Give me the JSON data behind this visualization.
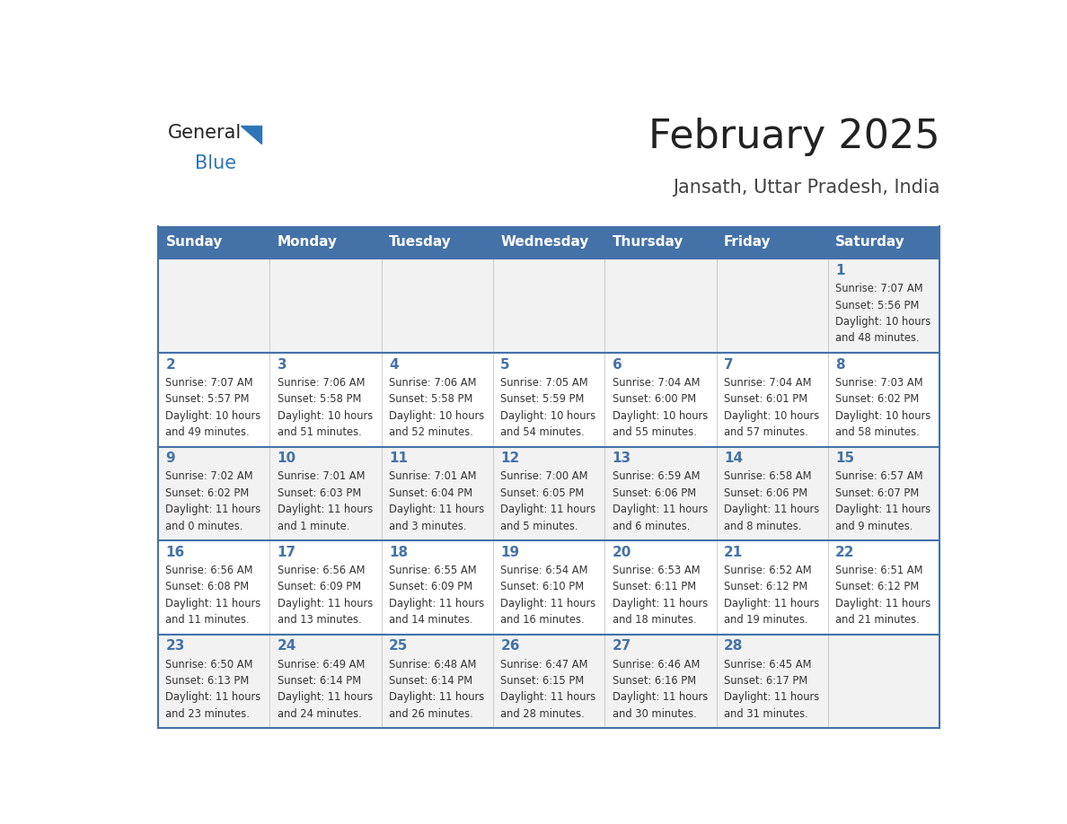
{
  "title": "February 2025",
  "subtitle": "Jansath, Uttar Pradesh, India",
  "days_of_week": [
    "Sunday",
    "Monday",
    "Tuesday",
    "Wednesday",
    "Thursday",
    "Friday",
    "Saturday"
  ],
  "header_bg": "#4472a8",
  "header_text": "#ffffff",
  "row_bg_odd": "#f2f2f2",
  "row_bg_even": "#ffffff",
  "border_color": "#4472a8",
  "day_num_color": "#4472a8",
  "cell_text_color": "#333333",
  "title_color": "#222222",
  "subtitle_color": "#444444",
  "logo_general_color": "#222222",
  "logo_blue_color": "#2e75b6",
  "calendar_data": [
    [
      null,
      null,
      null,
      null,
      null,
      null,
      {
        "day": "1",
        "sunrise": "7:07 AM",
        "sunset": "5:56 PM",
        "daylight_line1": "Daylight: 10 hours",
        "daylight_line2": "and 48 minutes."
      }
    ],
    [
      {
        "day": "2",
        "sunrise": "7:07 AM",
        "sunset": "5:57 PM",
        "daylight_line1": "Daylight: 10 hours",
        "daylight_line2": "and 49 minutes."
      },
      {
        "day": "3",
        "sunrise": "7:06 AM",
        "sunset": "5:58 PM",
        "daylight_line1": "Daylight: 10 hours",
        "daylight_line2": "and 51 minutes."
      },
      {
        "day": "4",
        "sunrise": "7:06 AM",
        "sunset": "5:58 PM",
        "daylight_line1": "Daylight: 10 hours",
        "daylight_line2": "and 52 minutes."
      },
      {
        "day": "5",
        "sunrise": "7:05 AM",
        "sunset": "5:59 PM",
        "daylight_line1": "Daylight: 10 hours",
        "daylight_line2": "and 54 minutes."
      },
      {
        "day": "6",
        "sunrise": "7:04 AM",
        "sunset": "6:00 PM",
        "daylight_line1": "Daylight: 10 hours",
        "daylight_line2": "and 55 minutes."
      },
      {
        "day": "7",
        "sunrise": "7:04 AM",
        "sunset": "6:01 PM",
        "daylight_line1": "Daylight: 10 hours",
        "daylight_line2": "and 57 minutes."
      },
      {
        "day": "8",
        "sunrise": "7:03 AM",
        "sunset": "6:02 PM",
        "daylight_line1": "Daylight: 10 hours",
        "daylight_line2": "and 58 minutes."
      }
    ],
    [
      {
        "day": "9",
        "sunrise": "7:02 AM",
        "sunset": "6:02 PM",
        "daylight_line1": "Daylight: 11 hours",
        "daylight_line2": "and 0 minutes."
      },
      {
        "day": "10",
        "sunrise": "7:01 AM",
        "sunset": "6:03 PM",
        "daylight_line1": "Daylight: 11 hours",
        "daylight_line2": "and 1 minute."
      },
      {
        "day": "11",
        "sunrise": "7:01 AM",
        "sunset": "6:04 PM",
        "daylight_line1": "Daylight: 11 hours",
        "daylight_line2": "and 3 minutes."
      },
      {
        "day": "12",
        "sunrise": "7:00 AM",
        "sunset": "6:05 PM",
        "daylight_line1": "Daylight: 11 hours",
        "daylight_line2": "and 5 minutes."
      },
      {
        "day": "13",
        "sunrise": "6:59 AM",
        "sunset": "6:06 PM",
        "daylight_line1": "Daylight: 11 hours",
        "daylight_line2": "and 6 minutes."
      },
      {
        "day": "14",
        "sunrise": "6:58 AM",
        "sunset": "6:06 PM",
        "daylight_line1": "Daylight: 11 hours",
        "daylight_line2": "and 8 minutes."
      },
      {
        "day": "15",
        "sunrise": "6:57 AM",
        "sunset": "6:07 PM",
        "daylight_line1": "Daylight: 11 hours",
        "daylight_line2": "and 9 minutes."
      }
    ],
    [
      {
        "day": "16",
        "sunrise": "6:56 AM",
        "sunset": "6:08 PM",
        "daylight_line1": "Daylight: 11 hours",
        "daylight_line2": "and 11 minutes."
      },
      {
        "day": "17",
        "sunrise": "6:56 AM",
        "sunset": "6:09 PM",
        "daylight_line1": "Daylight: 11 hours",
        "daylight_line2": "and 13 minutes."
      },
      {
        "day": "18",
        "sunrise": "6:55 AM",
        "sunset": "6:09 PM",
        "daylight_line1": "Daylight: 11 hours",
        "daylight_line2": "and 14 minutes."
      },
      {
        "day": "19",
        "sunrise": "6:54 AM",
        "sunset": "6:10 PM",
        "daylight_line1": "Daylight: 11 hours",
        "daylight_line2": "and 16 minutes."
      },
      {
        "day": "20",
        "sunrise": "6:53 AM",
        "sunset": "6:11 PM",
        "daylight_line1": "Daylight: 11 hours",
        "daylight_line2": "and 18 minutes."
      },
      {
        "day": "21",
        "sunrise": "6:52 AM",
        "sunset": "6:12 PM",
        "daylight_line1": "Daylight: 11 hours",
        "daylight_line2": "and 19 minutes."
      },
      {
        "day": "22",
        "sunrise": "6:51 AM",
        "sunset": "6:12 PM",
        "daylight_line1": "Daylight: 11 hours",
        "daylight_line2": "and 21 minutes."
      }
    ],
    [
      {
        "day": "23",
        "sunrise": "6:50 AM",
        "sunset": "6:13 PM",
        "daylight_line1": "Daylight: 11 hours",
        "daylight_line2": "and 23 minutes."
      },
      {
        "day": "24",
        "sunrise": "6:49 AM",
        "sunset": "6:14 PM",
        "daylight_line1": "Daylight: 11 hours",
        "daylight_line2": "and 24 minutes."
      },
      {
        "day": "25",
        "sunrise": "6:48 AM",
        "sunset": "6:14 PM",
        "daylight_line1": "Daylight: 11 hours",
        "daylight_line2": "and 26 minutes."
      },
      {
        "day": "26",
        "sunrise": "6:47 AM",
        "sunset": "6:15 PM",
        "daylight_line1": "Daylight: 11 hours",
        "daylight_line2": "and 28 minutes."
      },
      {
        "day": "27",
        "sunrise": "6:46 AM",
        "sunset": "6:16 PM",
        "daylight_line1": "Daylight: 11 hours",
        "daylight_line2": "and 30 minutes."
      },
      {
        "day": "28",
        "sunrise": "6:45 AM",
        "sunset": "6:17 PM",
        "daylight_line1": "Daylight: 11 hours",
        "daylight_line2": "and 31 minutes."
      },
      null
    ]
  ]
}
